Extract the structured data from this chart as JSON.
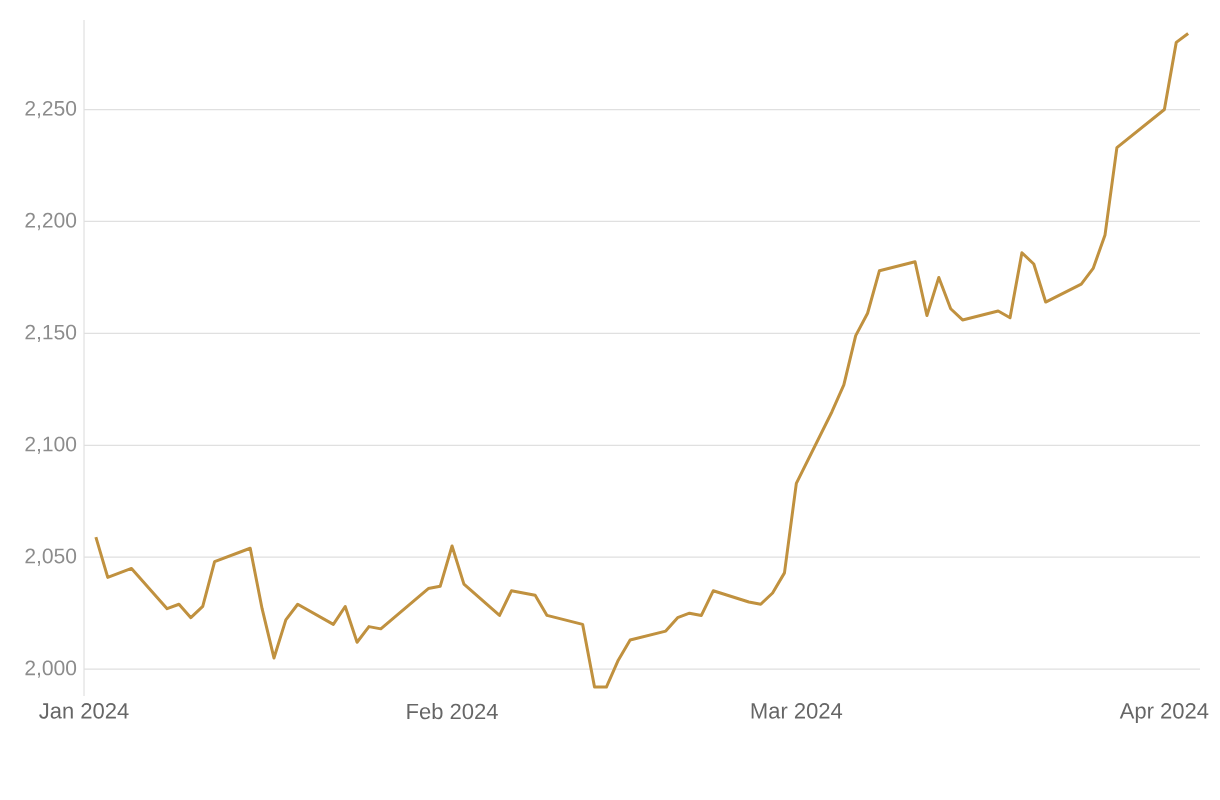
{
  "chart_data": {
    "type": "line",
    "x": [
      "2024-01-02",
      "2024-01-03",
      "2024-01-04",
      "2024-01-05",
      "2024-01-08",
      "2024-01-09",
      "2024-01-10",
      "2024-01-11",
      "2024-01-12",
      "2024-01-15",
      "2024-01-16",
      "2024-01-17",
      "2024-01-18",
      "2024-01-19",
      "2024-01-22",
      "2024-01-23",
      "2024-01-24",
      "2024-01-25",
      "2024-01-26",
      "2024-01-30",
      "2024-01-31",
      "2024-02-01",
      "2024-02-02",
      "2024-02-05",
      "2024-02-06",
      "2024-02-08",
      "2024-02-09",
      "2024-02-12",
      "2024-02-13",
      "2024-02-14",
      "2024-02-15",
      "2024-02-16",
      "2024-02-19",
      "2024-02-20",
      "2024-02-21",
      "2024-02-22",
      "2024-02-23",
      "2024-02-26",
      "2024-02-27",
      "2024-02-28",
      "2024-02-29",
      "2024-03-01",
      "2024-03-04",
      "2024-03-05",
      "2024-03-06",
      "2024-03-07",
      "2024-03-08",
      "2024-03-11",
      "2024-03-12",
      "2024-03-13",
      "2024-03-14",
      "2024-03-15",
      "2024-03-18",
      "2024-03-19",
      "2024-03-20",
      "2024-03-21",
      "2024-03-22",
      "2024-03-25",
      "2024-03-26",
      "2024-03-27",
      "2024-03-28",
      "2024-04-01",
      "2024-04-02",
      "2024-04-03"
    ],
    "series": [
      {
        "color": "#c0913f",
        "values": [
          2059,
          2041,
          2043,
          2045,
          2027,
          2029,
          2023,
          2028,
          2048,
          2054,
          2027,
          2005,
          2022,
          2029,
          2020,
          2028,
          2012,
          2019,
          2018,
          2036,
          2037,
          2055,
          2038,
          2024,
          2035,
          2033,
          2024,
          2020,
          1992,
          1992,
          2004,
          2013,
          2017,
          2023,
          2025,
          2024,
          2035,
          2030,
          2029,
          2034,
          2043,
          2083,
          2115,
          2127,
          2149,
          2159,
          2178,
          2182,
          2158,
          2175,
          2161,
          2156,
          2160,
          2157,
          2186,
          2181,
          2164,
          2172,
          2179,
          2194,
          2233,
          2250,
          2280,
          2284
        ]
      }
    ],
    "xlim": [
      "2024-01-01",
      "2024-04-04"
    ],
    "xticks": [
      {
        "value": "2024-01-01",
        "label": "Jan 2024"
      },
      {
        "value": "2024-02-01",
        "label": "Feb 2024"
      },
      {
        "value": "2024-03-01",
        "label": "Mar 2024"
      },
      {
        "value": "2024-04-01",
        "label": "Apr 2024"
      }
    ],
    "ylim": [
      1988,
      2290
    ],
    "yticks": [
      {
        "value": 2000,
        "label": "2,000"
      },
      {
        "value": 2050,
        "label": "2,050"
      },
      {
        "value": 2100,
        "label": "2,100"
      },
      {
        "value": 2150,
        "label": "2,150"
      },
      {
        "value": 2200,
        "label": "2,200"
      },
      {
        "value": 2250,
        "label": "2,250"
      }
    ],
    "grid": "y",
    "marker": "none",
    "line_style": "solid"
  }
}
